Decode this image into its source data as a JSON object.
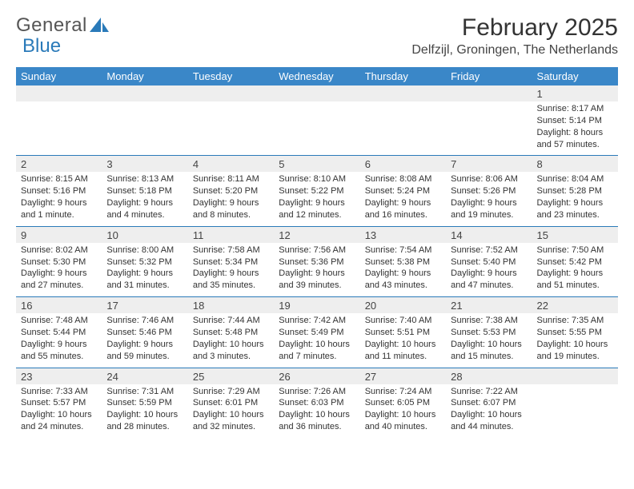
{
  "brand": {
    "word1": "General",
    "word2": "Blue"
  },
  "title": "February 2025",
  "location": "Delfzijl, Groningen, The Netherlands",
  "colors": {
    "header_bg": "#3a87c8",
    "header_text": "#ffffff",
    "daynum_bg": "#eeeeee",
    "rule": "#2a7ab9",
    "brand_blue": "#2a7ab9"
  },
  "days_of_week": [
    "Sunday",
    "Monday",
    "Tuesday",
    "Wednesday",
    "Thursday",
    "Friday",
    "Saturday"
  ],
  "weeks": [
    [
      null,
      null,
      null,
      null,
      null,
      null,
      {
        "n": "1",
        "sr": "8:17 AM",
        "ss": "5:14 PM",
        "dl": "8 hours and 57 minutes."
      }
    ],
    [
      {
        "n": "2",
        "sr": "8:15 AM",
        "ss": "5:16 PM",
        "dl": "9 hours and 1 minute."
      },
      {
        "n": "3",
        "sr": "8:13 AM",
        "ss": "5:18 PM",
        "dl": "9 hours and 4 minutes."
      },
      {
        "n": "4",
        "sr": "8:11 AM",
        "ss": "5:20 PM",
        "dl": "9 hours and 8 minutes."
      },
      {
        "n": "5",
        "sr": "8:10 AM",
        "ss": "5:22 PM",
        "dl": "9 hours and 12 minutes."
      },
      {
        "n": "6",
        "sr": "8:08 AM",
        "ss": "5:24 PM",
        "dl": "9 hours and 16 minutes."
      },
      {
        "n": "7",
        "sr": "8:06 AM",
        "ss": "5:26 PM",
        "dl": "9 hours and 19 minutes."
      },
      {
        "n": "8",
        "sr": "8:04 AM",
        "ss": "5:28 PM",
        "dl": "9 hours and 23 minutes."
      }
    ],
    [
      {
        "n": "9",
        "sr": "8:02 AM",
        "ss": "5:30 PM",
        "dl": "9 hours and 27 minutes."
      },
      {
        "n": "10",
        "sr": "8:00 AM",
        "ss": "5:32 PM",
        "dl": "9 hours and 31 minutes."
      },
      {
        "n": "11",
        "sr": "7:58 AM",
        "ss": "5:34 PM",
        "dl": "9 hours and 35 minutes."
      },
      {
        "n": "12",
        "sr": "7:56 AM",
        "ss": "5:36 PM",
        "dl": "9 hours and 39 minutes."
      },
      {
        "n": "13",
        "sr": "7:54 AM",
        "ss": "5:38 PM",
        "dl": "9 hours and 43 minutes."
      },
      {
        "n": "14",
        "sr": "7:52 AM",
        "ss": "5:40 PM",
        "dl": "9 hours and 47 minutes."
      },
      {
        "n": "15",
        "sr": "7:50 AM",
        "ss": "5:42 PM",
        "dl": "9 hours and 51 minutes."
      }
    ],
    [
      {
        "n": "16",
        "sr": "7:48 AM",
        "ss": "5:44 PM",
        "dl": "9 hours and 55 minutes."
      },
      {
        "n": "17",
        "sr": "7:46 AM",
        "ss": "5:46 PM",
        "dl": "9 hours and 59 minutes."
      },
      {
        "n": "18",
        "sr": "7:44 AM",
        "ss": "5:48 PM",
        "dl": "10 hours and 3 minutes."
      },
      {
        "n": "19",
        "sr": "7:42 AM",
        "ss": "5:49 PM",
        "dl": "10 hours and 7 minutes."
      },
      {
        "n": "20",
        "sr": "7:40 AM",
        "ss": "5:51 PM",
        "dl": "10 hours and 11 minutes."
      },
      {
        "n": "21",
        "sr": "7:38 AM",
        "ss": "5:53 PM",
        "dl": "10 hours and 15 minutes."
      },
      {
        "n": "22",
        "sr": "7:35 AM",
        "ss": "5:55 PM",
        "dl": "10 hours and 19 minutes."
      }
    ],
    [
      {
        "n": "23",
        "sr": "7:33 AM",
        "ss": "5:57 PM",
        "dl": "10 hours and 24 minutes."
      },
      {
        "n": "24",
        "sr": "7:31 AM",
        "ss": "5:59 PM",
        "dl": "10 hours and 28 minutes."
      },
      {
        "n": "25",
        "sr": "7:29 AM",
        "ss": "6:01 PM",
        "dl": "10 hours and 32 minutes."
      },
      {
        "n": "26",
        "sr": "7:26 AM",
        "ss": "6:03 PM",
        "dl": "10 hours and 36 minutes."
      },
      {
        "n": "27",
        "sr": "7:24 AM",
        "ss": "6:05 PM",
        "dl": "10 hours and 40 minutes."
      },
      {
        "n": "28",
        "sr": "7:22 AM",
        "ss": "6:07 PM",
        "dl": "10 hours and 44 minutes."
      },
      null
    ]
  ],
  "labels": {
    "sunrise": "Sunrise:",
    "sunset": "Sunset:",
    "daylight": "Daylight:"
  }
}
